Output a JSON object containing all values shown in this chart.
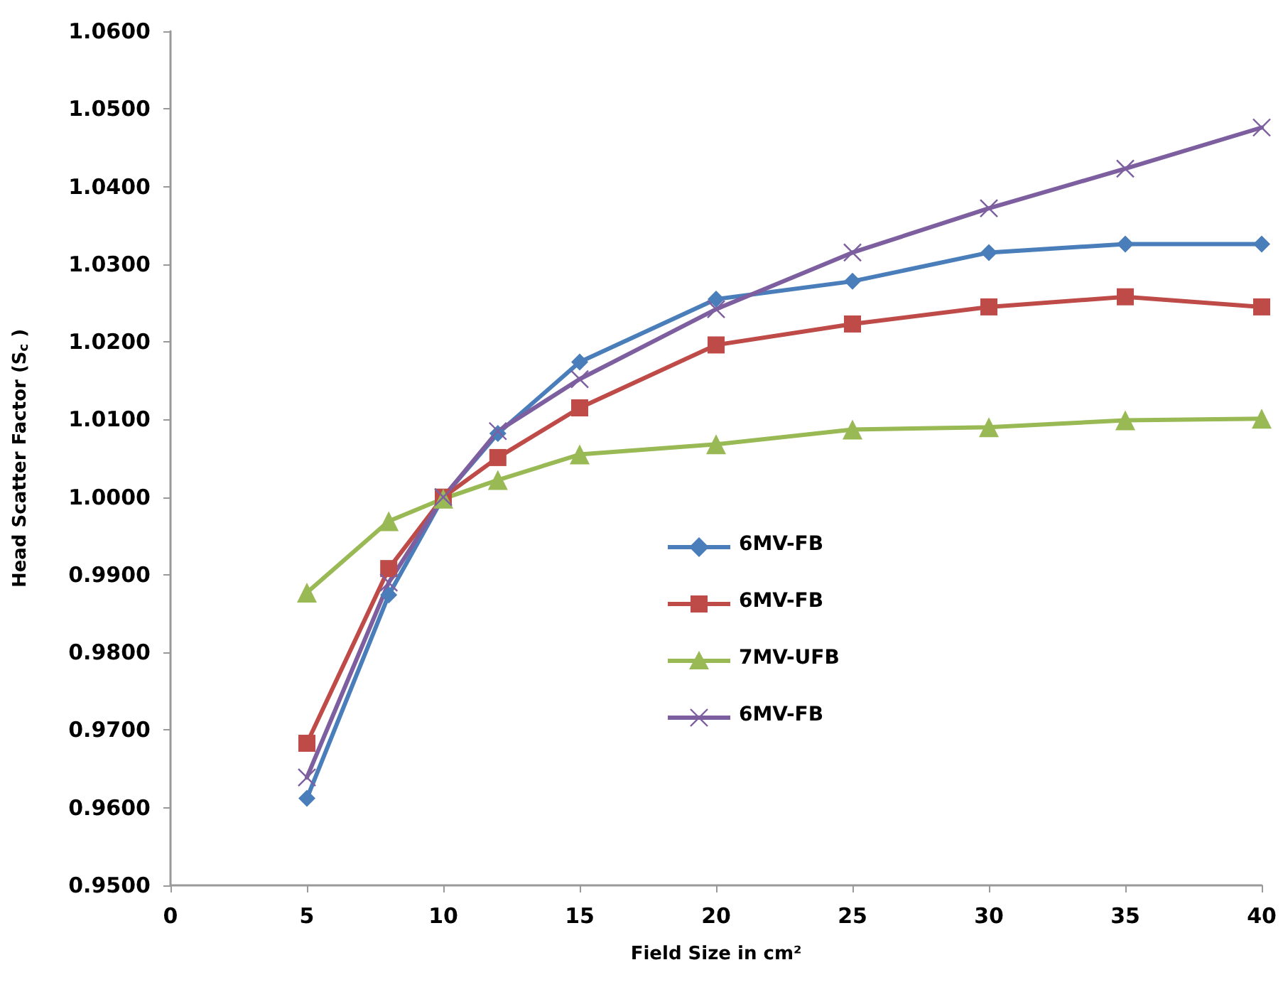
{
  "chart_data": {
    "type": "line",
    "xlabel": "Field Size in cm²",
    "ylabel": "Head Scatter Factor (S$_{c}$ )",
    "x": [
      5,
      8,
      10,
      12,
      15,
      20,
      25,
      30,
      35,
      40
    ],
    "series": [
      {
        "name": "6MV-FB",
        "color": "#4a7ebb",
        "marker": "diamond",
        "values": [
          0.9612,
          0.9874,
          1.0,
          1.0082,
          1.0174,
          1.0255,
          1.0278,
          1.0315,
          1.0326,
          1.0326
        ]
      },
      {
        "name": "6MV-FB",
        "color": "#be4b48",
        "marker": "square",
        "values": [
          0.9683,
          0.9908,
          1.0,
          1.0051,
          1.0115,
          1.0196,
          1.0223,
          1.0245,
          1.0258,
          1.0245
        ]
      },
      {
        "name": "7MV-UFB",
        "color": "#98b954",
        "marker": "triangle",
        "values": [
          0.9877,
          0.9969,
          0.9998,
          1.0022,
          1.0055,
          1.0068,
          1.0087,
          1.009,
          1.0099,
          1.0101
        ]
      },
      {
        "name": "6MV-FB",
        "color": "#7d5fa0",
        "marker": "cross",
        "values": [
          0.9639,
          0.989,
          1.0,
          1.0085,
          1.0152,
          1.0242,
          1.0315,
          1.0372,
          1.0423,
          1.0476
        ]
      }
    ],
    "xlim": [
      0,
      40
    ],
    "xticks": [
      0,
      5,
      10,
      15,
      20,
      25,
      30,
      35,
      40
    ],
    "ylim": [
      0.95,
      1.06
    ],
    "yticks": [
      {
        "value": 0.95,
        "label": "0.9500"
      },
      {
        "value": 0.96,
        "label": "0.9600"
      },
      {
        "value": 0.97,
        "label": "0.9700"
      },
      {
        "value": 0.98,
        "label": "0.9800"
      },
      {
        "value": 0.99,
        "label": "0.9900"
      },
      {
        "value": 1.0,
        "label": "1.0000"
      },
      {
        "value": 1.01,
        "label": "1.0100"
      },
      {
        "value": 1.02,
        "label": "1.0200"
      },
      {
        "value": 1.03,
        "label": "1.0300"
      },
      {
        "value": 1.04,
        "label": "1.0400"
      },
      {
        "value": 1.05,
        "label": "1.0500"
      },
      {
        "value": 1.06,
        "label": "1.0600"
      }
    ],
    "grid": false,
    "legend": "right"
  }
}
